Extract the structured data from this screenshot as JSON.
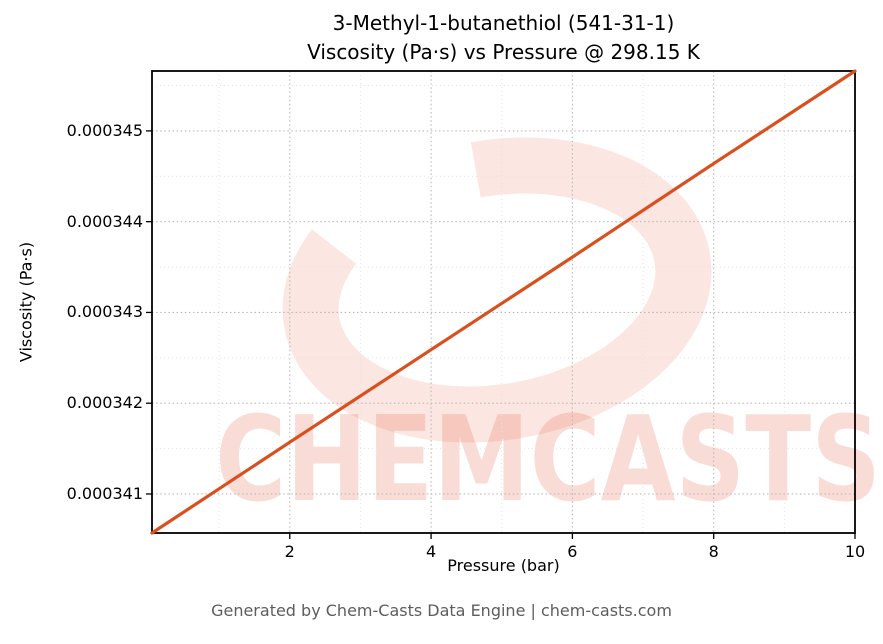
{
  "chart_data": {
    "type": "line",
    "title_line1": "3-Methyl-1-butanethiol (541-31-1)",
    "title_line2": "Viscosity (Pa·s) vs Pressure @ 298.15 K",
    "xlabel": "Pressure (bar)",
    "ylabel": "Viscosity (Pa·s)",
    "xlim": [
      0.05,
      10
    ],
    "ylim": [
      0.00034057,
      0.00034566
    ],
    "x_ticks": [
      2,
      4,
      6,
      8,
      10
    ],
    "x_tick_labels": [
      "2",
      "4",
      "6",
      "8",
      "10"
    ],
    "y_ticks": [
      0.000341,
      0.000342,
      0.000343,
      0.000344,
      0.000345
    ],
    "y_tick_labels": [
      "0.000341",
      "0.000342",
      "0.000343",
      "0.000344",
      "0.000345"
    ],
    "x_minor_ticks": [
      1,
      3,
      5,
      7,
      9
    ],
    "y_minor_ticks": [
      0.0003415,
      0.0003425,
      0.0003435,
      0.0003445,
      0.0003455
    ],
    "grid": true,
    "legend": false,
    "series": [
      {
        "name": "viscosity-vs-pressure",
        "x": [
          0.05,
          2,
          4,
          6,
          8,
          10
        ],
        "y": [
          0.00034057,
          0.00034157,
          0.00034259,
          0.00034361,
          0.00034464,
          0.00034566
        ],
        "color": "#d9501e",
        "line_width": 3.2
      }
    ]
  },
  "watermark": {
    "text": "CHEMCASTS",
    "color": "#e65437"
  },
  "footer": {
    "text": "Generated by Chem-Casts Data Engine | chem-casts.com"
  }
}
